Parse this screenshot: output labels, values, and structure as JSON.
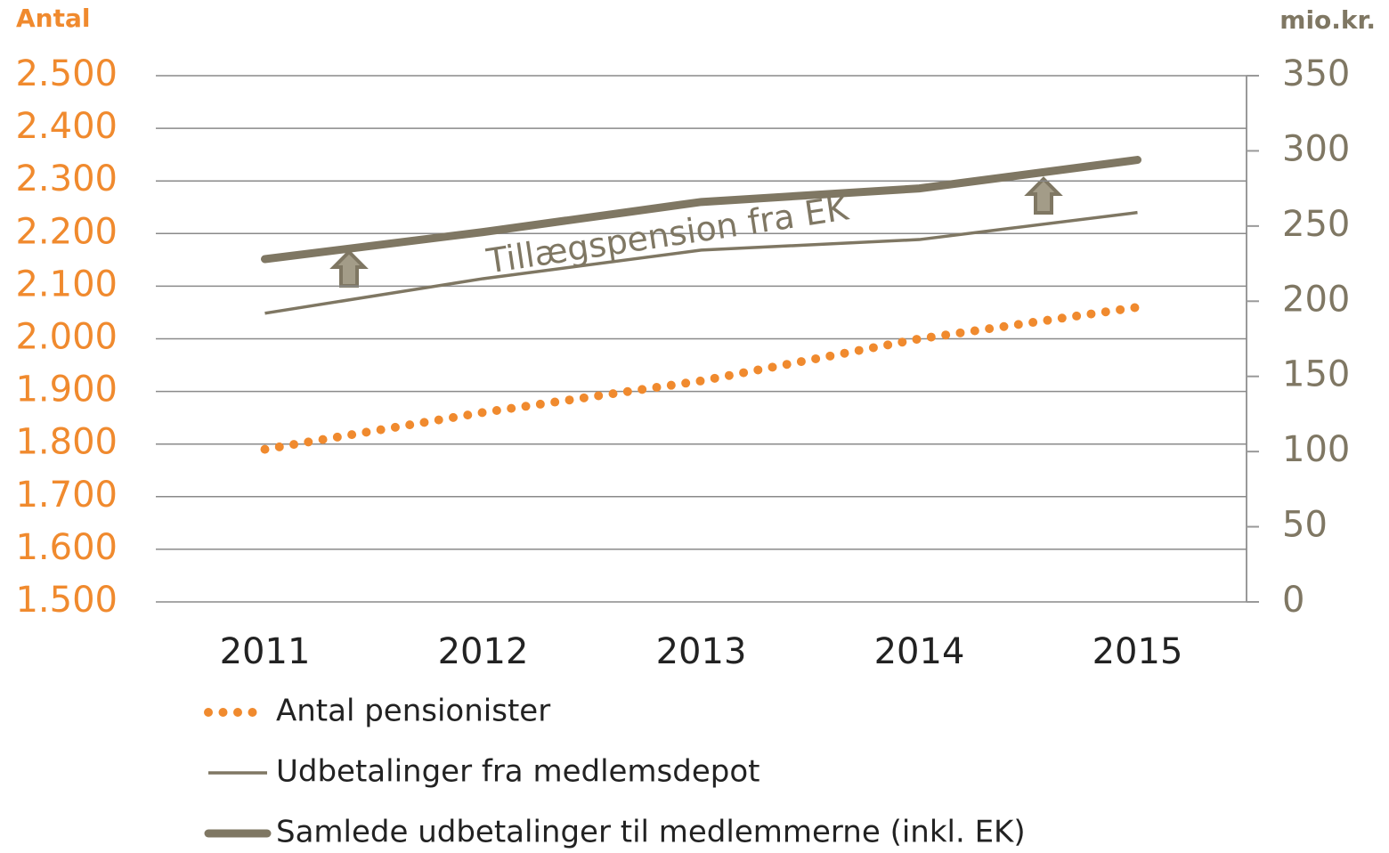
{
  "chart_data": {
    "type": "line",
    "y_label": "Antal",
    "y2_label": "mio.kr.",
    "annotation": "Tillægspension fra EK",
    "x": [
      "2011",
      "2012",
      "2013",
      "2014",
      "2015"
    ],
    "series": [
      {
        "name": "Antal pensionister",
        "color": "#f08a2e",
        "style": "dotted",
        "axis": "y",
        "values": [
          1790,
          1860,
          1920,
          2000,
          2060
        ]
      },
      {
        "name": "Udbetalinger fra medlemsdepot",
        "color": "#7f7763",
        "style": "thin",
        "axis": "y2",
        "values": [
          192,
          215,
          234,
          241,
          259
        ]
      },
      {
        "name": "Samlede udbetalinger til medlemmerne (inkl. EK)",
        "color": "#7f7763",
        "style": "thick",
        "axis": "y2",
        "values": [
          228,
          246,
          266,
          275,
          294
        ]
      }
    ],
    "ylim": [
      1500,
      2500
    ],
    "yticks": [
      {
        "value": 1500,
        "label": "1.500"
      },
      {
        "value": 1600,
        "label": "1.600"
      },
      {
        "value": 1700,
        "label": "1.700"
      },
      {
        "value": 1800,
        "label": "1.800"
      },
      {
        "value": 1900,
        "label": "1.900"
      },
      {
        "value": 2000,
        "label": "2.000"
      },
      {
        "value": 2100,
        "label": "2.100"
      },
      {
        "value": 2200,
        "label": "2.200"
      },
      {
        "value": 2300,
        "label": "2.300"
      },
      {
        "value": 2400,
        "label": "2.400"
      },
      {
        "value": 2500,
        "label": "2.500"
      }
    ],
    "y2lim": [
      0,
      350
    ],
    "y2ticks": [
      0,
      50,
      100,
      150,
      200,
      250,
      300,
      350
    ],
    "y_color": "#f08a2e",
    "y2_color": "#7f7763",
    "grid": true
  }
}
